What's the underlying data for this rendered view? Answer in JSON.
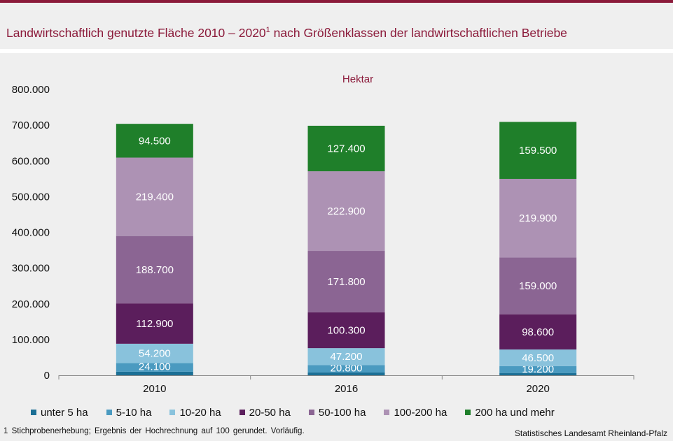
{
  "title": {
    "main": "Landwirtschaftlich genutzte Fläche 2010 – 2020",
    "sup": "1",
    "rest": " nach Größenklassen der landwirtschaftlichen Betriebe"
  },
  "footnote": "1 Stichprobenerhebung; Ergebnis der Hochrechnung auf 100 gerundet. Vorläufig.",
  "source": "Statistisches Landesamt Rheinland-Pfalz",
  "chart_data": {
    "type": "bar",
    "stacked": true,
    "unit_label": "Hektar",
    "categories": [
      "2010",
      "2016",
      "2020"
    ],
    "ylim": [
      0,
      800000
    ],
    "yticks": [
      "0",
      "100.000",
      "200.000",
      "300.000",
      "400.000",
      "500.000",
      "600.000",
      "700.000",
      "800.000"
    ],
    "grid": false,
    "legend_position": "bottom",
    "series": [
      {
        "name": "unter 5 ha",
        "color": "#1b6f95",
        "values": [
          10000,
          8000,
          6500
        ],
        "labels": [
          "",
          "",
          ""
        ]
      },
      {
        "name": "5-10 ha",
        "color": "#4a9ac0",
        "values": [
          24100,
          20800,
          19200
        ],
        "labels": [
          "24.100",
          "20.800",
          "19.200"
        ]
      },
      {
        "name": "10-20 ha",
        "color": "#89c2dc",
        "values": [
          54200,
          47200,
          46500
        ],
        "labels": [
          "54.200",
          "47.200",
          "46.500"
        ]
      },
      {
        "name": "20-50 ha",
        "color": "#5b1e5c",
        "values": [
          112900,
          100300,
          98600
        ],
        "labels": [
          "112.900",
          "100.300",
          "98.600"
        ]
      },
      {
        "name": "50-100 ha",
        "color": "#8b6593",
        "values": [
          188700,
          171800,
          159000
        ],
        "labels": [
          "188.700",
          "171.800",
          "159.000"
        ]
      },
      {
        "name": "100-200 ha",
        "color": "#ad92b4",
        "values": [
          219400,
          222900,
          219900
        ],
        "labels": [
          "219.400",
          "222.900",
          "219.900"
        ]
      },
      {
        "name": "200 ha und mehr",
        "color": "#1f7f2a",
        "values": [
          94500,
          127400,
          159500
        ],
        "labels": [
          "94.500",
          "127.400",
          "159.500"
        ]
      }
    ]
  }
}
